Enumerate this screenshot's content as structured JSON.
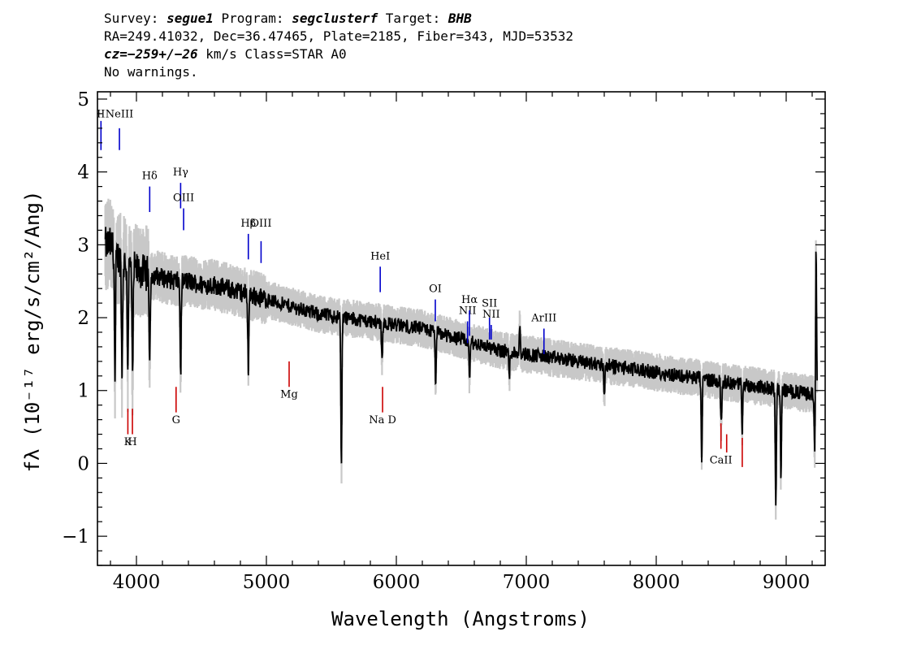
{
  "header": {
    "line1": {
      "survey_label": "Survey: ",
      "survey": "segue1",
      "program_label": " Program: ",
      "program": "segclusterf",
      "target_label": " Target: ",
      "target": "BHB"
    },
    "line2": "RA=249.41032, Dec=36.47465, Plate=2185, Fiber=343, MJD=53532",
    "line3": {
      "cz": "cz=−259+/−26",
      "rest": " km/s Class=STAR A0"
    },
    "line4": "No warnings."
  },
  "colors": {
    "flux": "#000000",
    "noise_band": "#c8c8c8",
    "emission_line": "#0000cc",
    "absorption_line": "#cc0000"
  },
  "chart_data": {
    "type": "line",
    "xlabel": "Wavelength (Angstroms)",
    "ylabel": "fλ (10⁻¹⁷ erg/s/cm²/Ang)",
    "xlim": [
      3700,
      9300
    ],
    "ylim": [
      -1.4,
      5.1
    ],
    "x_ticks": [
      4000,
      5000,
      6000,
      7000,
      8000,
      9000
    ],
    "y_ticks": [
      -1,
      0,
      1,
      2,
      3,
      4,
      5
    ],
    "grid": false,
    "continuum": {
      "x": [
        3800,
        3850,
        3900,
        4000,
        4100,
        4200,
        4300,
        4400,
        4500,
        4600,
        4700,
        4800,
        4900,
        5000,
        5200,
        5400,
        5600,
        5800,
        6000,
        6200,
        6400,
        6600,
        6800,
        7000,
        7200,
        7400,
        7600,
        7800,
        8000,
        8200,
        8400,
        8600,
        8800,
        9000,
        9200
      ],
      "y": [
        3.0,
        2.85,
        2.75,
        2.65,
        2.6,
        2.55,
        2.5,
        2.5,
        2.45,
        2.45,
        2.4,
        2.35,
        2.3,
        2.25,
        2.15,
        2.05,
        2.0,
        1.95,
        1.9,
        1.85,
        1.75,
        1.65,
        1.55,
        1.5,
        1.45,
        1.4,
        1.35,
        1.3,
        1.25,
        1.2,
        1.15,
        1.1,
        1.05,
        1.0,
        0.95
      ]
    },
    "absorption_features": [
      {
        "x": 3835,
        "depth": 1.8
      },
      {
        "x": 3889,
        "depth": 1.6
      },
      {
        "x": 3933,
        "depth": 1.4
      },
      {
        "x": 3970,
        "depth": 1.6
      },
      {
        "x": 4102,
        "depth": 1.3
      },
      {
        "x": 4340,
        "depth": 1.3
      },
      {
        "x": 4861,
        "depth": 1.0
      },
      {
        "x": 5577,
        "depth": 2.1
      },
      {
        "x": 5890,
        "depth": 0.5
      },
      {
        "x": 6302,
        "depth": 0.7
      },
      {
        "x": 6563,
        "depth": 0.5
      },
      {
        "x": 6870,
        "depth": 0.35
      },
      {
        "x": 7600,
        "depth": 0.4
      },
      {
        "x": 8350,
        "depth": 1.1
      },
      {
        "x": 8500,
        "depth": 0.6
      },
      {
        "x": 8662,
        "depth": 0.6
      },
      {
        "x": 8920,
        "depth": 1.6
      },
      {
        "x": 8960,
        "depth": 1.2
      },
      {
        "x": 9220,
        "depth": 0.9
      }
    ],
    "emission_features": [
      {
        "x": 6950,
        "height": 0.4
      },
      {
        "x": 9230,
        "height": 2.0
      }
    ],
    "line_labels": [
      {
        "text": "II",
        "x": 3727,
        "y_top": 4.7,
        "y_bottom": 4.3,
        "label_y": 4.75,
        "kind": "emission"
      },
      {
        "text": "NeIII",
        "x": 3869,
        "y_top": 4.6,
        "y_bottom": 4.3,
        "label_y": 4.75,
        "kind": "emission"
      },
      {
        "text": "Hδ",
        "x": 4102,
        "y_top": 3.8,
        "y_bottom": 3.45,
        "label_y": 3.9,
        "kind": "emission"
      },
      {
        "text": "Hγ",
        "x": 4340,
        "y_top": 3.85,
        "y_bottom": 3.5,
        "label_y": 3.95,
        "kind": "emission"
      },
      {
        "text": "OIII",
        "x": 4363,
        "y_top": 3.5,
        "y_bottom": 3.2,
        "label_y": 3.6,
        "kind": "emission"
      },
      {
        "text": "Hβ",
        "x": 4861,
        "y_top": 3.15,
        "y_bottom": 2.8,
        "label_y": 3.25,
        "kind": "emission"
      },
      {
        "text": "OIII",
        "x": 4959,
        "y_top": 3.05,
        "y_bottom": 2.75,
        "label_y": 3.25,
        "kind": "emission"
      },
      {
        "text": "HeI",
        "x": 5876,
        "y_top": 2.7,
        "y_bottom": 2.35,
        "label_y": 2.8,
        "kind": "emission"
      },
      {
        "text": "OI",
        "x": 6300,
        "y_top": 2.25,
        "y_bottom": 1.95,
        "label_y": 2.35,
        "kind": "emission"
      },
      {
        "text": "NII",
        "x": 6548,
        "y_top": 1.95,
        "y_bottom": 1.65,
        "label_y": 2.05,
        "kind": "emission"
      },
      {
        "text": "Hα",
        "x": 6563,
        "y_top": 2.1,
        "y_bottom": 1.75,
        "label_y": 2.2,
        "kind": "emission"
      },
      {
        "text": "SII",
        "x": 6717,
        "y_top": 2.0,
        "y_bottom": 1.7,
        "label_y": 2.15,
        "kind": "emission"
      },
      {
        "text": "NII",
        "x": 6730,
        "y_top": 1.9,
        "y_bottom": 1.7,
        "label_y": 2.0,
        "kind": "emission"
      },
      {
        "text": "ArIII",
        "x": 7136,
        "y_top": 1.85,
        "y_bottom": 1.5,
        "label_y": 1.95,
        "kind": "emission"
      },
      {
        "text": "K",
        "x": 3934,
        "y_top": 0.75,
        "y_bottom": 0.4,
        "label_y": 0.25,
        "kind": "absorption"
      },
      {
        "text": "H",
        "x": 3969,
        "y_top": 0.75,
        "y_bottom": 0.4,
        "label_y": 0.25,
        "kind": "absorption"
      },
      {
        "text": "G",
        "x": 4305,
        "y_top": 1.05,
        "y_bottom": 0.7,
        "label_y": 0.55,
        "kind": "absorption"
      },
      {
        "text": "Mg",
        "x": 5175,
        "y_top": 1.4,
        "y_bottom": 1.05,
        "label_y": 0.9,
        "kind": "absorption"
      },
      {
        "text": "Na D",
        "x": 5894,
        "y_top": 1.05,
        "y_bottom": 0.7,
        "label_y": 0.55,
        "kind": "absorption"
      },
      {
        "text": "CaII",
        "x": 8498,
        "y_top": 0.55,
        "y_bottom": 0.2,
        "label_y": 0.0,
        "kind": "absorption"
      },
      {
        "text": "",
        "x": 8542,
        "y_top": 0.4,
        "y_bottom": 0.15,
        "label_y": 0.0,
        "kind": "absorption"
      },
      {
        "text": "",
        "x": 8662,
        "y_top": 0.35,
        "y_bottom": -0.05,
        "label_y": 0.0,
        "kind": "absorption"
      }
    ]
  }
}
